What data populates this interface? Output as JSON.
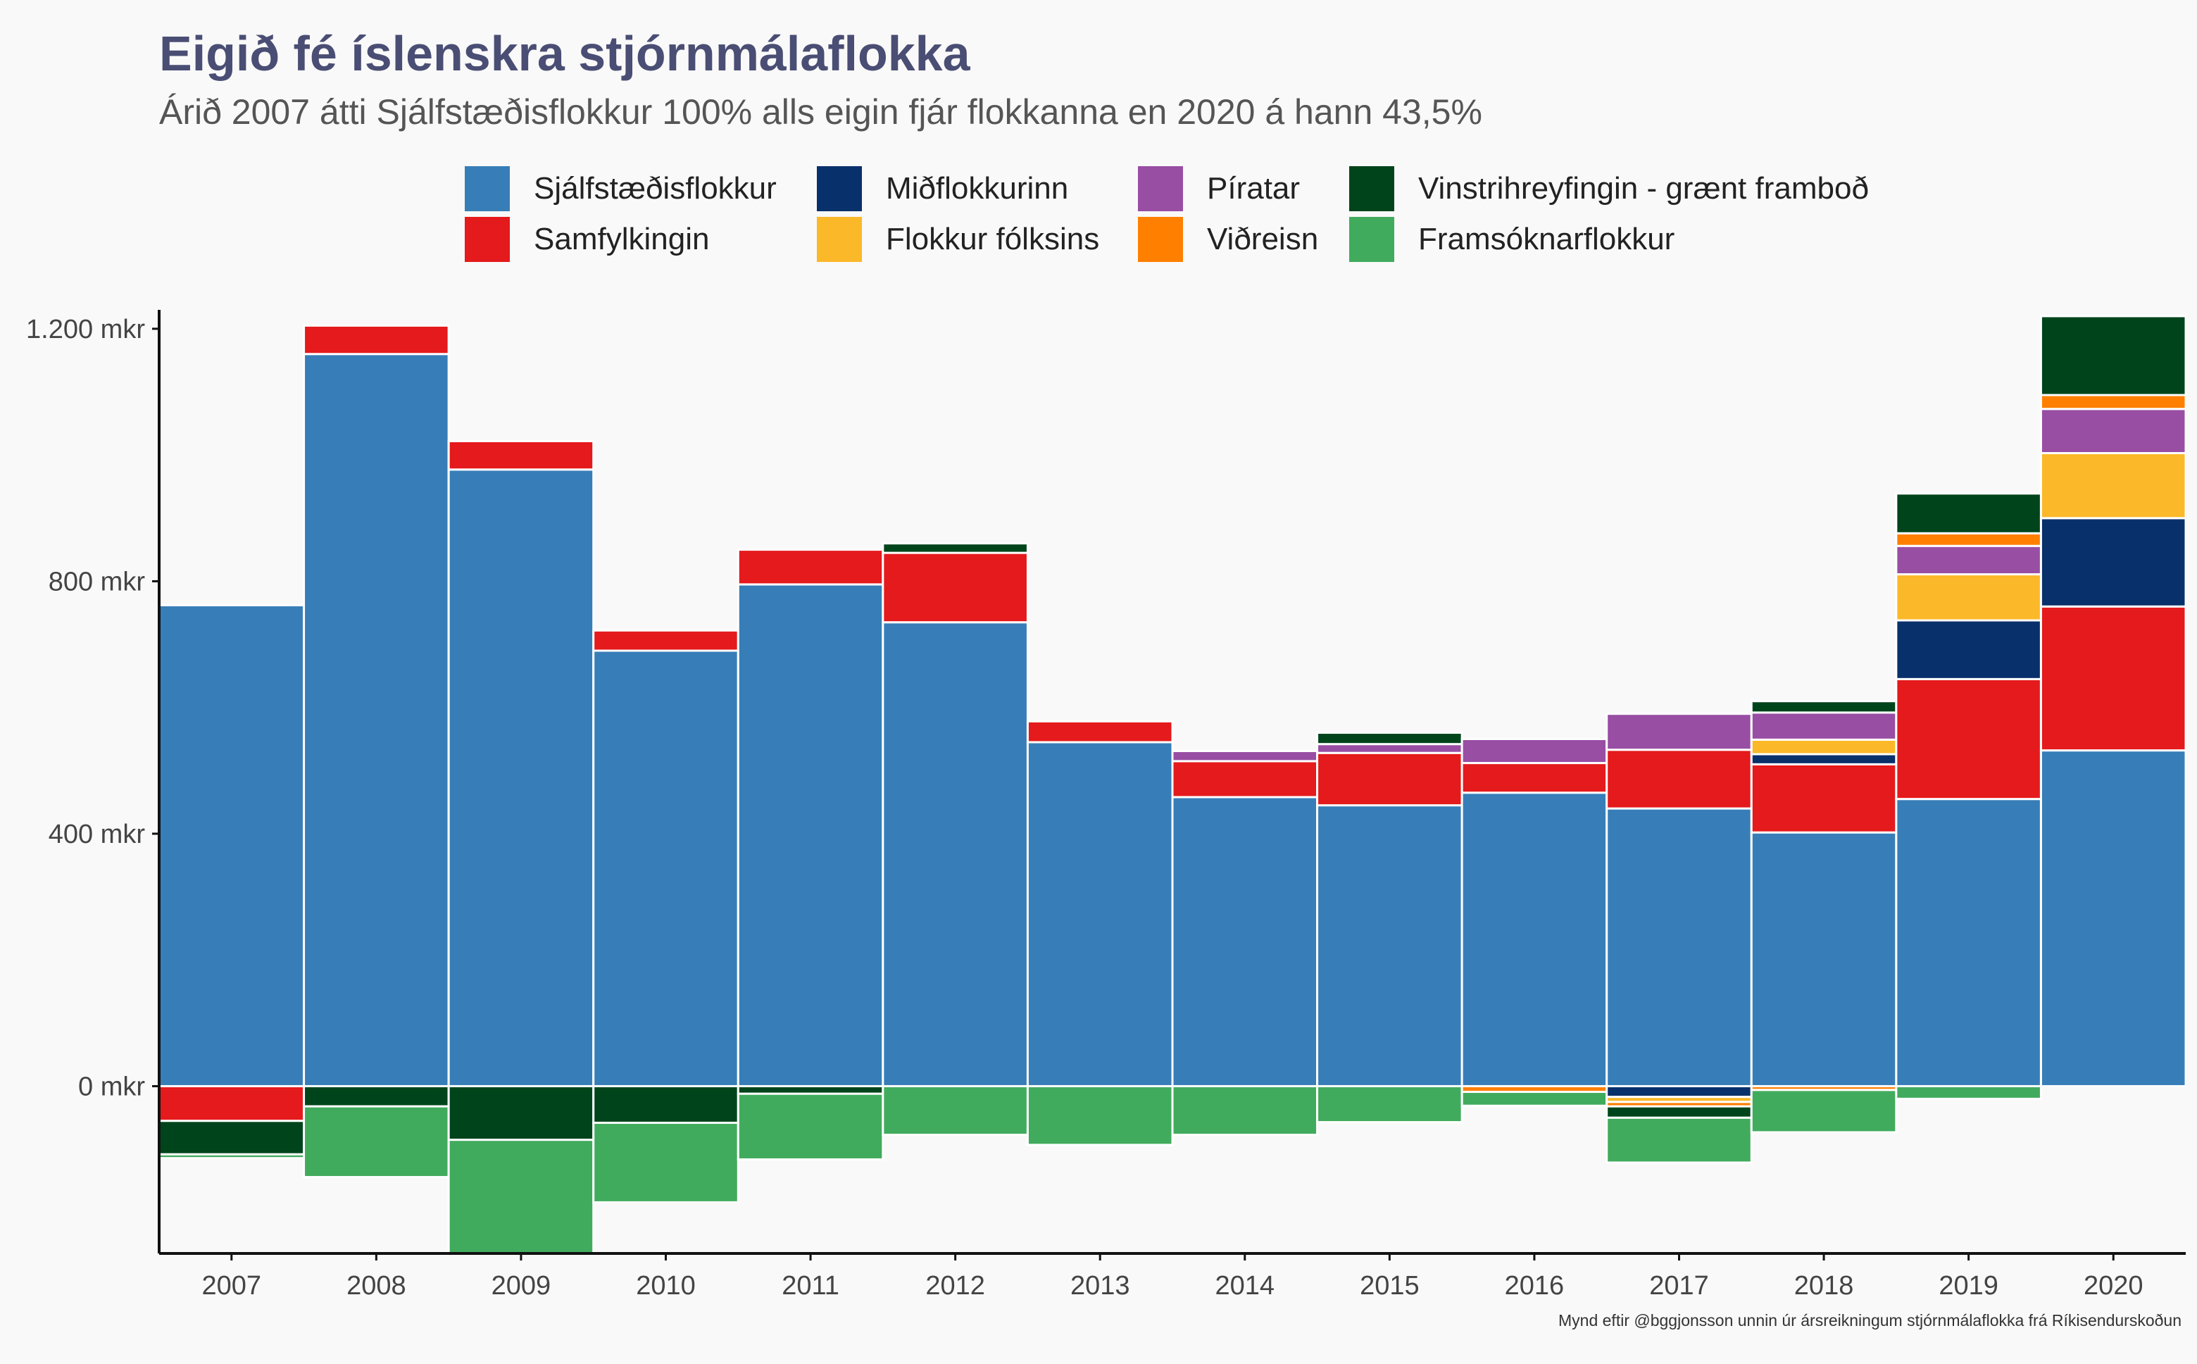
{
  "chart_data": {
    "type": "bar",
    "stacked": true,
    "title": "Eigið fé íslenskra stjórnmálaflokka",
    "subtitle": "Árið 2007 átti Sjálfstæðisflokkur 100% alls eigin fjár flokkanna en 2020 á hann 43,5%",
    "caption": "Mynd eftir @bggjonsson unnin úr ársreikningum stjórnmálaflokka frá Ríkisendurskoðun",
    "xlabel": "",
    "ylabel": "",
    "ylim": [
      -265,
      1230
    ],
    "yticks": [
      0,
      400,
      800,
      1200
    ],
    "ytick_labels": [
      "0 mkr",
      "400 mkr",
      "800 mkr",
      "1.200 mkr"
    ],
    "legend_position": "top",
    "categories": [
      "2007",
      "2008",
      "2009",
      "2010",
      "2011",
      "2012",
      "2013",
      "2014",
      "2015",
      "2016",
      "2017",
      "2018",
      "2019",
      "2020"
    ],
    "series": [
      {
        "name": "Sjálfstæðisflokkur",
        "color": "#377eb8",
        "values": [
          762,
          1160,
          977,
          690,
          795,
          735,
          545,
          458,
          445,
          465,
          440,
          402,
          455,
          532
        ]
      },
      {
        "name": "Samfylkingin",
        "color": "#e41a1c",
        "values": [
          -55,
          45,
          45,
          32,
          55,
          110,
          33,
          57,
          83,
          47,
          93,
          108,
          190,
          228
        ]
      },
      {
        "name": "Miðflokkurinn",
        "color": "#08306b",
        "values": [
          0,
          0,
          0,
          0,
          0,
          0,
          0,
          0,
          0,
          0,
          -17,
          16,
          93,
          140
        ]
      },
      {
        "name": "Flokkur fólksins",
        "color": "#fbb829",
        "values": [
          0,
          0,
          0,
          0,
          0,
          0,
          0,
          0,
          0,
          0,
          -8,
          23,
          73,
          103
        ]
      },
      {
        "name": "Píratar",
        "color": "#984ea3",
        "values": [
          0,
          0,
          0,
          0,
          0,
          0,
          0,
          16,
          14,
          38,
          57,
          43,
          45,
          70
        ]
      },
      {
        "name": "Viðreisn",
        "color": "#ff7f00",
        "values": [
          0,
          0,
          0,
          0,
          0,
          0,
          0,
          0,
          0,
          -9,
          -7,
          -6,
          20,
          22
        ]
      },
      {
        "name": "Vinstrihreyfingin - grænt framboð",
        "color": "#00441b",
        "values": [
          -53,
          -32,
          -85,
          -58,
          -12,
          15,
          0,
          0,
          18,
          0,
          -18,
          18,
          63,
          125
        ]
      },
      {
        "name": "Framsóknarflokkur",
        "color": "#41ab5d",
        "values": [
          -6,
          -112,
          -180,
          -126,
          -104,
          -77,
          -93,
          -77,
          -57,
          -22,
          -71,
          -67,
          -20,
          0
        ]
      }
    ]
  }
}
